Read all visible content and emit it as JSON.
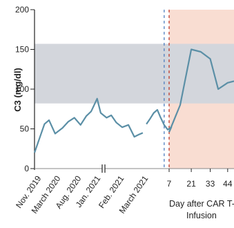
{
  "chart_data": {
    "type": "line",
    "ylabel": "C3 (mg/dl)",
    "ylim": [
      0,
      200
    ],
    "yticks": [
      0,
      50,
      100,
      150,
      200
    ],
    "normal_range": [
      82,
      157
    ],
    "pre_axis": {
      "date_tick_labels": [
        "Nov. 2019",
        "March 2020",
        "Aug. 2020",
        "Jan. 2021",
        "Feb. 2021",
        "March 2021"
      ]
    },
    "post_axis": {
      "tick_labels": [
        "7",
        "21",
        "33",
        "44"
      ],
      "label_lines": [
        "Day after CAR T-Ce",
        "Infusion"
      ]
    },
    "series": [
      {
        "segment": "pre-Jan-2021",
        "x_dates": [
          "2019-10-20",
          "2019-11-10",
          "2019-12-01",
          "2019-12-20",
          "2020-01-15",
          "2020-02-15",
          "2020-03-10",
          "2020-04-05",
          "2020-05-01",
          "2020-05-25",
          "2020-06-15",
          "2020-07-10",
          "2020-07-25",
          "2020-08-10",
          "2020-08-30",
          "2020-09-20",
          "2020-10-15",
          "2020-11-10",
          "2020-12-05",
          "2020-12-25",
          "2021-01-10"
        ],
        "values": [
          20,
          38,
          56,
          61,
          44,
          51,
          59,
          64,
          55,
          66,
          72,
          88,
          70,
          64,
          67,
          58,
          52,
          55,
          40,
          43,
          45
        ]
      },
      {
        "segment": "Feb-2021-to-day-7",
        "x_dates": [
          "2021-01-25",
          "2021-02-10",
          "2021-02-25",
          "2021-03-12",
          "2021-03-25",
          "2021-04-10",
          "2021-04-25",
          "2021-05-10"
        ],
        "values": [
          56,
          63,
          70,
          74,
          65,
          55,
          49,
          52
        ],
        "x_days": [
          7
        ],
        "values_days": [
          46
        ]
      },
      {
        "segment": "post-infusion",
        "x_days": [
          7,
          14,
          21,
          27,
          33,
          38,
          44,
          48
        ],
        "values": [
          46,
          80,
          150,
          147,
          138,
          100,
          108,
          110
        ]
      }
    ],
    "markers": [
      {
        "style": "dashed",
        "color": "#4f7fc0",
        "at": "2021-04-10"
      },
      {
        "style": "dashed",
        "color": "#c0392b",
        "at": "infusion"
      }
    ],
    "colors": {
      "line": "#5b8fa6",
      "normal_band": "#d3d6dc",
      "post_infusion_bg": "#f9ddd2"
    }
  }
}
